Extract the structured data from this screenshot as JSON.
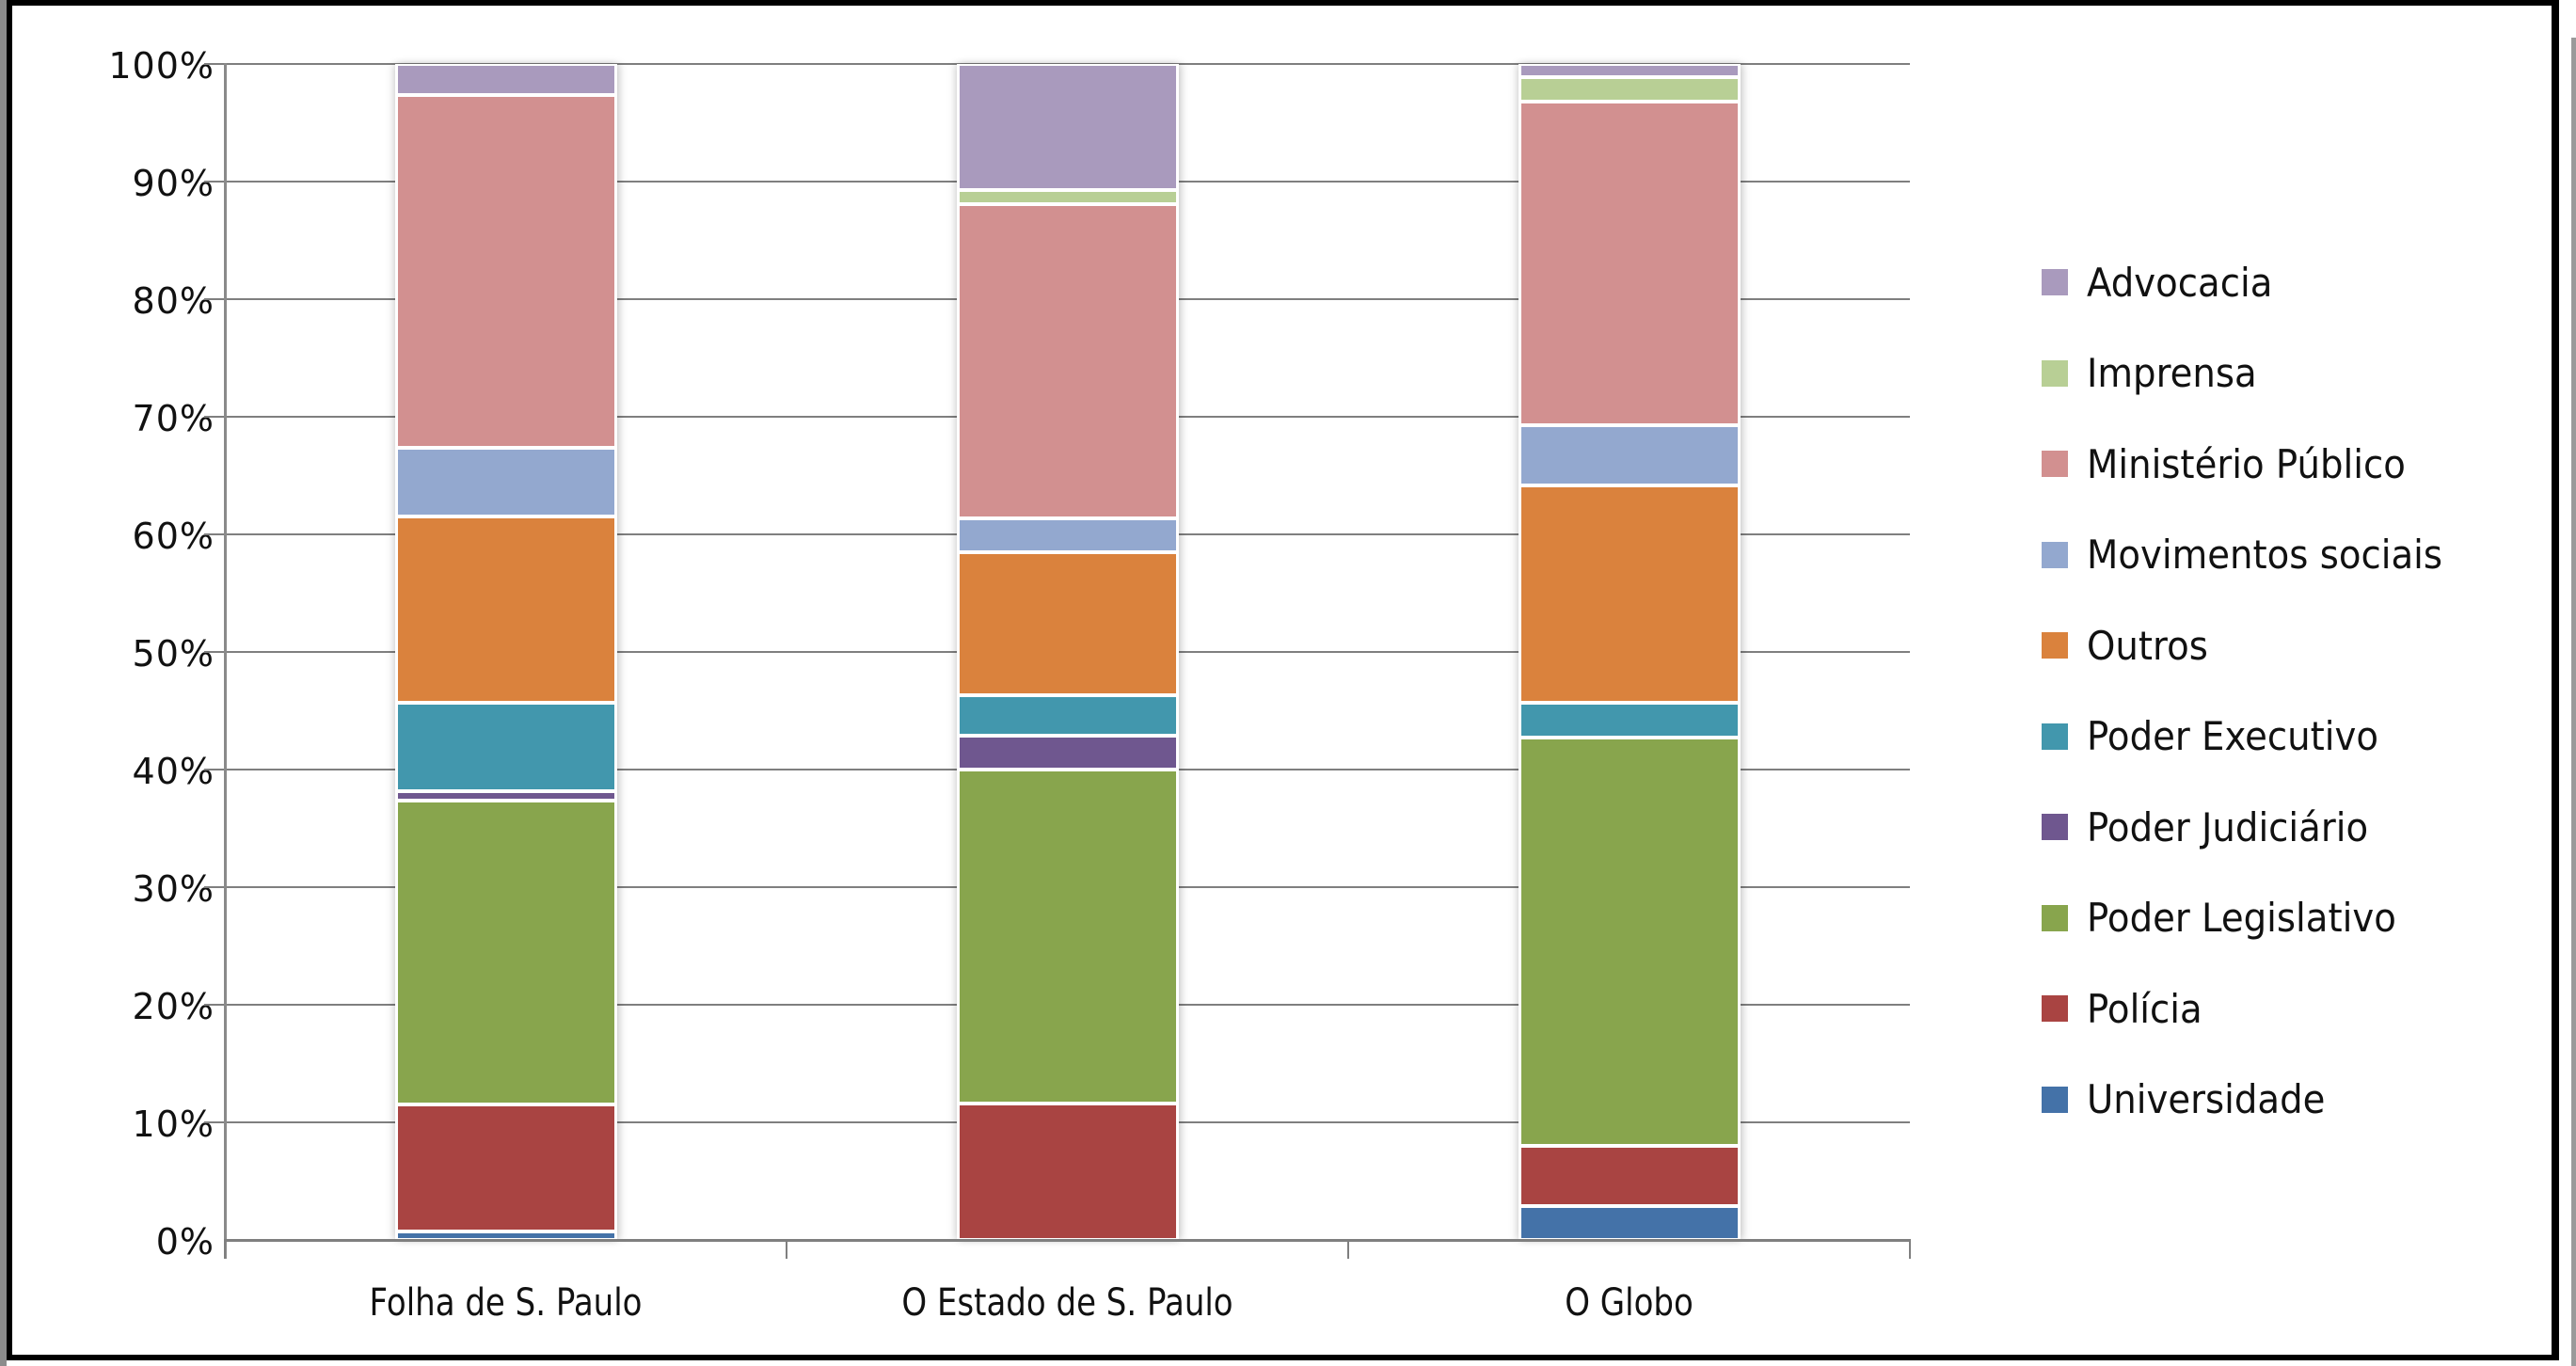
{
  "chart_data": {
    "type": "bar",
    "stacked": true,
    "percent_stacked": true,
    "title": "",
    "xlabel": "",
    "ylabel": "",
    "ylim": [
      0,
      100
    ],
    "y_ticks": [
      "0%",
      "10%",
      "20%",
      "30%",
      "40%",
      "50%",
      "60%",
      "70%",
      "80%",
      "90%",
      "100%"
    ],
    "grid": true,
    "legend_position": "right",
    "categories": [
      "Folha de S. Paulo",
      "O Estado de S. Paulo",
      "O Globo"
    ],
    "series": [
      {
        "name": "Universidade",
        "color": "#4472a8",
        "values": [
          0.7,
          0.0,
          2.9
        ]
      },
      {
        "name": "Polícia",
        "color": "#a94442",
        "values": [
          10.8,
          11.6,
          5.1
        ]
      },
      {
        "name": "Poder Legislativo",
        "color": "#88a54d",
        "values": [
          25.9,
          28.4,
          34.7
        ]
      },
      {
        "name": "Poder Judiciário",
        "color": "#6f578f",
        "values": [
          0.8,
          2.9,
          0.0
        ]
      },
      {
        "name": "Poder Executivo",
        "color": "#4297ad",
        "values": [
          7.5,
          3.4,
          3.0
        ]
      },
      {
        "name": "Outros",
        "color": "#da823d",
        "values": [
          15.8,
          12.2,
          18.5
        ]
      },
      {
        "name": "Movimentos sociais",
        "color": "#93a8cf",
        "values": [
          5.9,
          2.9,
          5.1
        ]
      },
      {
        "name": "Ministério Público",
        "color": "#d29090",
        "values": [
          30.0,
          26.7,
          27.5
        ]
      },
      {
        "name": "Imprensa",
        "color": "#b8cf95",
        "values": [
          0.0,
          1.2,
          2.1
        ]
      },
      {
        "name": "Advocacia",
        "color": "#a99abd",
        "values": [
          2.6,
          10.7,
          1.1
        ]
      }
    ]
  },
  "axis": {
    "y_ticks": [
      "0%",
      "10%",
      "20%",
      "30%",
      "40%",
      "50%",
      "60%",
      "70%",
      "80%",
      "90%",
      "100%"
    ],
    "x_labels": [
      "Folha de S. Paulo",
      "O Estado de S. Paulo",
      "O Globo"
    ]
  },
  "legend": {
    "items": [
      {
        "label": "Advocacia",
        "color": "#a99abd"
      },
      {
        "label": "Imprensa",
        "color": "#b8cf95"
      },
      {
        "label": "Ministério Público",
        "color": "#d29090"
      },
      {
        "label": "Movimentos sociais",
        "color": "#93a8cf"
      },
      {
        "label": "Outros",
        "color": "#da823d"
      },
      {
        "label": "Poder Executivo",
        "color": "#4297ad"
      },
      {
        "label": "Poder Judiciário",
        "color": "#6f578f"
      },
      {
        "label": "Poder Legislativo",
        "color": "#88a54d"
      },
      {
        "label": "Polícia",
        "color": "#a94442"
      },
      {
        "label": "Universidade",
        "color": "#4472a8"
      }
    ]
  }
}
